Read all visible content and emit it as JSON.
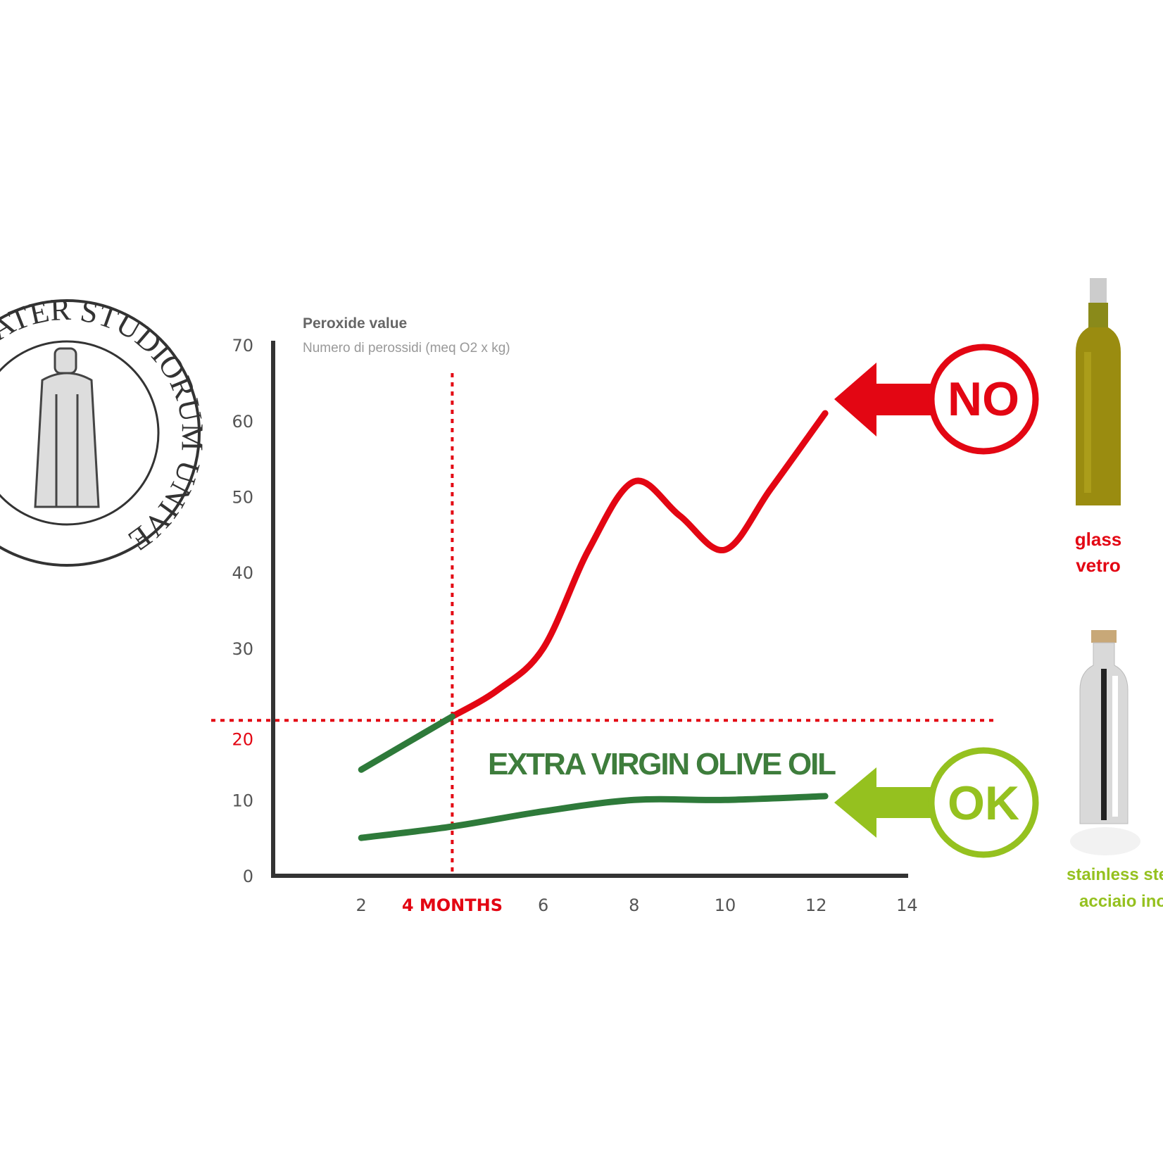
{
  "seal": {
    "text": "ALMA MATER STUDIORUM UNIVERSITAS",
    "visible_text": [
      "STUDIORUM",
      "UNIVERSITAS"
    ]
  },
  "chart_data": {
    "type": "line",
    "title": "",
    "ylabel": "Peroxide value",
    "ylabel_sub": "Numero di perossidi (meq O2 x kg)",
    "xlim": [
      0,
      14
    ],
    "ylim": [
      0,
      70
    ],
    "x_ticks": [
      "2",
      "4 MONTHS",
      "6",
      "8",
      "10",
      "12",
      "14"
    ],
    "x_tick_values": [
      2,
      4,
      6,
      8,
      10,
      12,
      14
    ],
    "y_ticks": [
      0,
      10,
      20,
      30,
      40,
      50,
      60,
      70
    ],
    "grid": false,
    "threshold": {
      "y": 20.5,
      "x": 4,
      "color": "#e30613"
    },
    "series": [
      {
        "name": "glass / vetro",
        "color": "#e30613",
        "color_below_threshold": "#2e7a3a",
        "x": [
          2,
          3,
          4,
          5,
          6,
          7,
          8,
          9,
          10,
          11,
          12.2
        ],
        "values": [
          14,
          17.5,
          21,
          24.5,
          30,
          43,
          52,
          47.5,
          43,
          51,
          61
        ]
      },
      {
        "name": "stainless steel / acciaio inox",
        "color": "#2e7a3a",
        "x": [
          2,
          4,
          6,
          8,
          10,
          12.2
        ],
        "values": [
          5,
          6.5,
          8.5,
          10,
          10,
          10.5
        ]
      }
    ],
    "annotations": {
      "product_label": "EXTRA VIRGIN OLIVE OIL",
      "no_badge": "NO",
      "ok_badge": "OK",
      "glass_label": [
        "glass",
        "vetro"
      ],
      "steel_label": [
        "stainless steel",
        "acciaio inox"
      ]
    },
    "colors": {
      "no": "#e30613",
      "ok": "#95c11f",
      "product": "#3e7d3c",
      "axis": "#333333"
    }
  }
}
